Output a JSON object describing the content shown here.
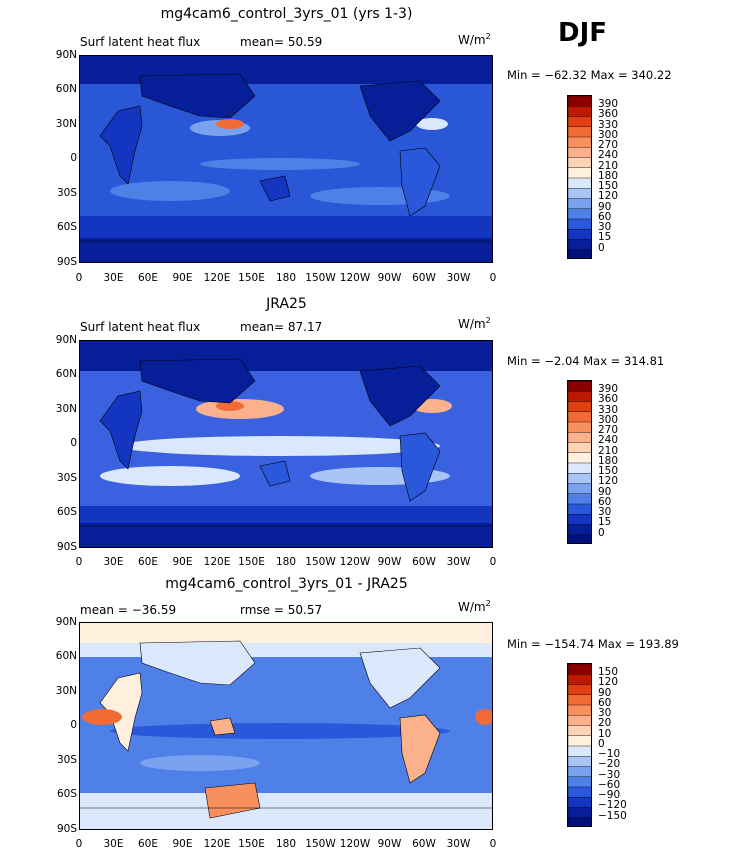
{
  "season": "DJF",
  "unit_base": "W/m",
  "unit_exp": "2",
  "x_ticks": [
    "0",
    "30E",
    "60E",
    "90E",
    "120E",
    "150E",
    "180",
    "150W",
    "120W",
    "90W",
    "60W",
    "30W",
    "0"
  ],
  "y_ticks": [
    "90N",
    "60N",
    "30N",
    "0",
    "30S",
    "60S",
    "90S"
  ],
  "colors": {
    "map_ocean_model": "#2a55d8",
    "map_ocean_obs": "#3a62e0",
    "map_diff": "#3c6be6"
  },
  "chart_data": [
    {
      "type": "heatmap",
      "title": "mg4cam6_control_3yrs_01 (yrs 1-3)",
      "left_label": "Surf latent heat flux",
      "center_label": "mean=  50.59",
      "minmax": "Min = −62.32 Max = 340.22",
      "colorbar_levels": [
        "390",
        "360",
        "330",
        "300",
        "270",
        "240",
        "210",
        "180",
        "150",
        "120",
        "90",
        "60",
        "30",
        "15",
        "0"
      ],
      "colorbar_colors": [
        "#8a0000",
        "#bb1a00",
        "#e0400f",
        "#f26a35",
        "#f8905e",
        "#fbb18c",
        "#fdd3b6",
        "#fff0dd",
        "#dbe8fb",
        "#a9c5f6",
        "#7aa3ef",
        "#4f80e8",
        "#2a58da",
        "#1435bf",
        "#061f98",
        "#00107a"
      ]
    },
    {
      "type": "heatmap",
      "title": "JRA25",
      "left_label": "Surf latent heat flux",
      "center_label": "mean=  87.17",
      "minmax": "Min =  −2.04 Max = 314.81",
      "colorbar_levels": [
        "390",
        "360",
        "330",
        "300",
        "270",
        "240",
        "210",
        "180",
        "150",
        "120",
        "90",
        "60",
        "30",
        "15",
        "0"
      ],
      "colorbar_colors": [
        "#8a0000",
        "#bb1a00",
        "#e0400f",
        "#f26a35",
        "#f8905e",
        "#fbb18c",
        "#fdd3b6",
        "#fff0dd",
        "#dbe8fb",
        "#a9c5f6",
        "#7aa3ef",
        "#4f80e8",
        "#2a58da",
        "#1435bf",
        "#061f98",
        "#00107a"
      ]
    },
    {
      "type": "heatmap",
      "title": "mg4cam6_control_3yrs_01 - JRA25",
      "left_label": "mean = −36.59",
      "center_label": "rmse =  50.57",
      "minmax": "Min = −154.74 Max = 193.89",
      "colorbar_levels": [
        "150",
        "120",
        "90",
        "60",
        "30",
        "20",
        "10",
        "0",
        "−10",
        "−20",
        "−30",
        "−60",
        "−90",
        "−120",
        "−150"
      ],
      "colorbar_colors": [
        "#8a0000",
        "#bb1a00",
        "#e0400f",
        "#f26a35",
        "#f8905e",
        "#fbb18c",
        "#fdd3b6",
        "#fff0dd",
        "#dbe8fb",
        "#a9c5f6",
        "#7aa3ef",
        "#4f80e8",
        "#2a58da",
        "#1435bf",
        "#061f98",
        "#00107a"
      ]
    }
  ]
}
